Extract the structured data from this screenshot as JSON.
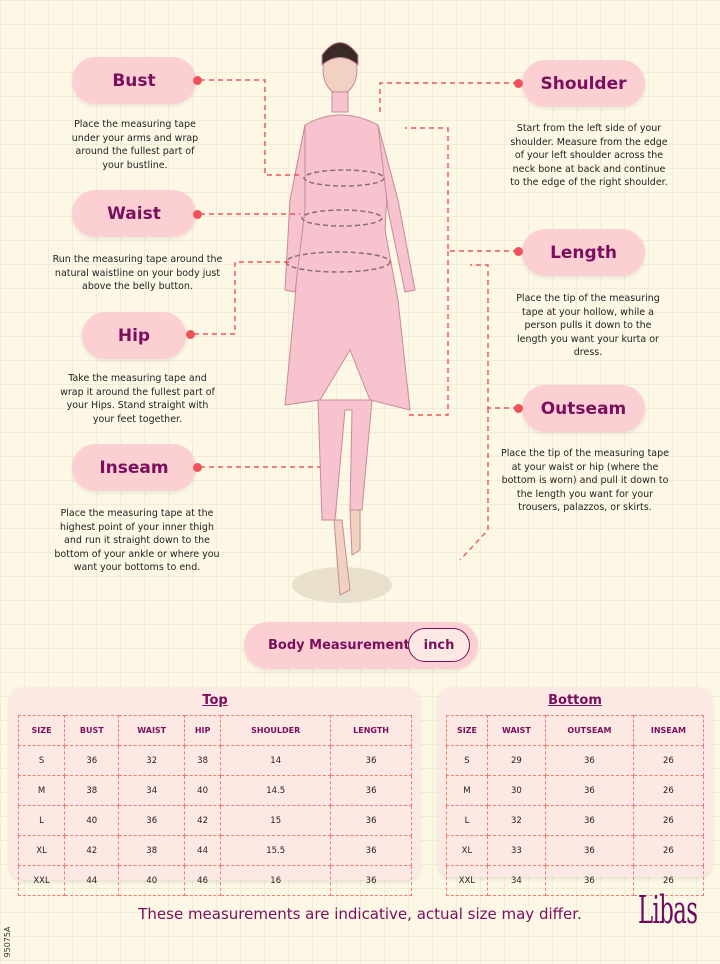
{
  "measurements": {
    "bust": {
      "label": "Bust",
      "description": "Place the measuring tape under your arms and wrap around the fullest part of your bustline."
    },
    "waist": {
      "label": "Waist",
      "description": "Run the measuring tape around the natural waistline on your body just above the belly button."
    },
    "hip": {
      "label": "Hip",
      "description": "Take the measuring tape and wrap it around the fullest part of your Hips. Stand straight with your feet together."
    },
    "inseam": {
      "label": "Inseam",
      "description": "Place the measuring tape at the highest point of your inner thigh and run it straight down to the bottom of your ankle or where you want your bottoms to end."
    },
    "shoulder": {
      "label": "Shoulder",
      "description": "Start from the left side of your shoulder. Measure from the edge of your left shoulder across the neck bone at back and continue to the edge of the right shoulder."
    },
    "length": {
      "label": "Length",
      "description": "Place the tip of the measuring tape at your hollow, while a person pulls it down to the length you want your kurta or dress."
    },
    "outseam": {
      "label": "Outseam",
      "description": "Place the tip of the measuring tape at your waist or hip (where the bottom is worn) and pull it down to the length you want for your trousers, palazzos, or skirts."
    }
  },
  "unit_selector": {
    "label": "Body Measurement",
    "unit": "inch"
  },
  "top_table": {
    "title": "Top",
    "headers": [
      "SIZE",
      "BUST",
      "WAIST",
      "HIP",
      "SHOULDER",
      "LENGTH"
    ],
    "rows": [
      [
        "S",
        "36",
        "32",
        "38",
        "14",
        "36"
      ],
      [
        "M",
        "38",
        "34",
        "40",
        "14.5",
        "36"
      ],
      [
        "L",
        "40",
        "36",
        "42",
        "15",
        "36"
      ],
      [
        "XL",
        "42",
        "38",
        "44",
        "15.5",
        "36"
      ],
      [
        "XXL",
        "44",
        "40",
        "46",
        "16",
        "36"
      ]
    ]
  },
  "bottom_table": {
    "title": "Bottom",
    "headers": [
      "SIZE",
      "WAIST",
      "OUTSEAM",
      "INSEAM"
    ],
    "rows": [
      [
        "S",
        "29",
        "36",
        "26"
      ],
      [
        "M",
        "30",
        "36",
        "26"
      ],
      [
        "L",
        "32",
        "36",
        "26"
      ],
      [
        "XL",
        "33",
        "36",
        "26"
      ],
      [
        "XXL",
        "34",
        "36",
        "26"
      ]
    ]
  },
  "footer": {
    "note": "These measurements are indicative, actual size may differ.",
    "brand": "Libas",
    "code": "95075A"
  },
  "colors": {
    "accent": "#7a0f5e",
    "pill": "#fcd0d3",
    "dash": "#f0525a",
    "background": "#fdf8e6"
  }
}
